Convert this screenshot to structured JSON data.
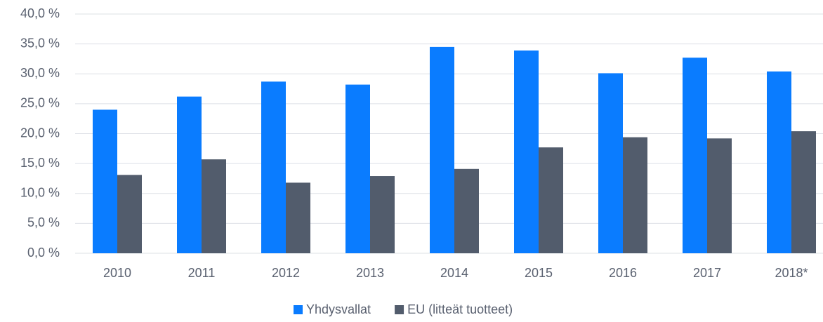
{
  "chart_data": {
    "type": "bar",
    "categories": [
      "2010",
      "2011",
      "2012",
      "2013",
      "2014",
      "2015",
      "2016",
      "2017",
      "2018*"
    ],
    "series": [
      {
        "name": "Yhdysvallat",
        "color": "#0a7cff",
        "values": [
          24.0,
          26.2,
          28.7,
          28.2,
          34.5,
          33.9,
          30.1,
          32.7,
          30.4
        ]
      },
      {
        "name": "EU (litteät tuotteet)",
        "color": "#525c6c",
        "values": [
          13.1,
          15.7,
          11.8,
          12.9,
          14.1,
          17.7,
          19.4,
          19.2,
          20.4
        ]
      }
    ],
    "ylim": [
      0,
      40
    ],
    "yticks": [
      {
        "value": 0,
        "label": "0,0 %"
      },
      {
        "value": 5,
        "label": "5,0 %"
      },
      {
        "value": 10,
        "label": "10,0 %"
      },
      {
        "value": 15,
        "label": "15,0 %"
      },
      {
        "value": 20,
        "label": "20,0 %"
      },
      {
        "value": 25,
        "label": "25,0 %"
      },
      {
        "value": 30,
        "label": "30,0 %"
      },
      {
        "value": 35,
        "label": "35,0 %"
      },
      {
        "value": 40,
        "label": "40,0 %"
      }
    ],
    "grid": true,
    "legend": "bottom"
  }
}
